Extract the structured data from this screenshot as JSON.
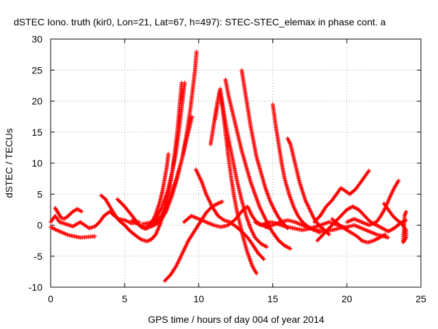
{
  "chart_data": {
    "type": "scatter",
    "title": "dSTEC Iono. truth (kir0, Lon=21, Lat=67, h=497): STEC-STEC_elemax in phase cont. a",
    "xlabel": "GPS time / hours of day 004 of year 2014",
    "ylabel": "dSTEC  / TECUs",
    "xlim": [
      0,
      25
    ],
    "ylim": [
      -10,
      30
    ],
    "xticks": [
      "0",
      "5",
      "10",
      "15",
      "20",
      "25"
    ],
    "yticks": [
      "-10",
      "-5",
      "0",
      "5",
      "10",
      "15",
      "20",
      "25",
      "30"
    ],
    "grid": true,
    "marker": "+",
    "colors": {
      "series": "#ff0000"
    },
    "series": [
      {
        "points": [
          [
            0,
            0.5
          ],
          [
            0.3,
            1.5
          ],
          [
            0.6,
            0.5
          ],
          [
            1.0,
            0.2
          ],
          [
            1.5,
            -0.2
          ],
          [
            2.0,
            0.5
          ],
          [
            2.3,
            0
          ],
          [
            2.6,
            -0.5
          ],
          [
            3.0,
            -0.2
          ],
          [
            3.3,
            0.5
          ],
          [
            3.6,
            1.5
          ],
          [
            4.0,
            2.2
          ],
          [
            4.3,
            1.5
          ],
          [
            4.6,
            1.0
          ],
          [
            5.0,
            0.8
          ],
          [
            5.5,
            0.3
          ],
          [
            6.0,
            0.5
          ]
        ]
      },
      {
        "points": [
          [
            0,
            -0.3
          ],
          [
            0.4,
            -0.8
          ],
          [
            0.8,
            -1.2
          ],
          [
            1.2,
            -1.6
          ],
          [
            1.6,
            -1.8
          ],
          [
            2.0,
            -2.0
          ],
          [
            2.5,
            -1.9
          ],
          [
            3.0,
            -1.8
          ]
        ]
      },
      {
        "points": [
          [
            0.3,
            2.8
          ],
          [
            0.5,
            2.0
          ],
          [
            0.7,
            1.2
          ],
          [
            0.9,
            1.0
          ],
          [
            1.2,
            1.5
          ],
          [
            1.5,
            2.2
          ],
          [
            1.8,
            2.6
          ],
          [
            2.1,
            2.2
          ]
        ]
      },
      {
        "points": [
          [
            3.4,
            4.8
          ],
          [
            3.7,
            4.2
          ],
          [
            4.0,
            3.0
          ],
          [
            4.3,
            1.8
          ],
          [
            4.6,
            0.8
          ],
          [
            5.0,
            0.0
          ],
          [
            5.3,
            -0.8
          ],
          [
            5.7,
            -1.6
          ],
          [
            6.1,
            -2.3
          ],
          [
            6.5,
            -2.6
          ],
          [
            6.8,
            -2.3
          ],
          [
            7.1,
            -1.5
          ],
          [
            7.4,
            0.2
          ],
          [
            7.7,
            2.5
          ],
          [
            8.0,
            5.5
          ],
          [
            8.2,
            8.5
          ],
          [
            8.4,
            12.0
          ],
          [
            8.55,
            15.0
          ],
          [
            8.7,
            19.0
          ],
          [
            8.85,
            23.0
          ]
        ]
      },
      {
        "points": [
          [
            4.5,
            4.2
          ],
          [
            5.0,
            3.0
          ],
          [
            5.4,
            1.8
          ],
          [
            5.8,
            0.6
          ],
          [
            6.1,
            -0.3
          ],
          [
            6.4,
            -0.6
          ],
          [
            6.8,
            0.2
          ],
          [
            7.1,
            1.8
          ],
          [
            7.35,
            3.6
          ],
          [
            7.55,
            5.5
          ],
          [
            7.7,
            7.5
          ],
          [
            7.85,
            9.5
          ],
          [
            7.95,
            11.5
          ]
        ]
      },
      {
        "points": [
          [
            5.5,
            0.8
          ],
          [
            6.0,
            0.0
          ],
          [
            6.5,
            -0.5
          ],
          [
            7.0,
            0.0
          ],
          [
            7.4,
            0.6
          ],
          [
            7.8,
            2.2
          ],
          [
            8.2,
            4.8
          ],
          [
            8.5,
            7.2
          ],
          [
            8.8,
            10.0
          ],
          [
            9.1,
            13.0
          ],
          [
            9.4,
            16.0
          ],
          [
            9.55,
            17.5
          ]
        ]
      },
      {
        "points": [
          [
            6.2,
            0.2
          ],
          [
            6.7,
            0.4
          ],
          [
            7.1,
            1.0
          ],
          [
            7.5,
            2.8
          ],
          [
            7.9,
            5.5
          ],
          [
            8.2,
            8.5
          ],
          [
            8.45,
            11.5
          ],
          [
            8.65,
            15.0
          ],
          [
            8.8,
            18.0
          ],
          [
            8.95,
            21.0
          ],
          [
            9.05,
            23.0
          ]
        ]
      },
      {
        "points": [
          [
            6.5,
            0.0
          ],
          [
            7.0,
            0.3
          ],
          [
            7.5,
            1.5
          ],
          [
            8.0,
            4.0
          ],
          [
            8.5,
            7.5
          ],
          [
            8.9,
            11.0
          ],
          [
            9.2,
            15.0
          ],
          [
            9.45,
            19.0
          ],
          [
            9.6,
            22.0
          ],
          [
            9.75,
            25.0
          ],
          [
            9.85,
            28.0
          ]
        ]
      },
      {
        "points": [
          [
            7.7,
            -9.0
          ],
          [
            8.1,
            -8.0
          ],
          [
            8.5,
            -6.5
          ],
          [
            8.9,
            -4.5
          ],
          [
            9.3,
            -2.5
          ],
          [
            9.7,
            -1.0
          ],
          [
            10.1,
            0.5
          ],
          [
            10.5,
            2.0
          ],
          [
            10.9,
            3.0
          ],
          [
            11.3,
            3.5
          ],
          [
            11.6,
            3.8
          ]
        ]
      },
      {
        "points": [
          [
            9.8,
            9.0
          ],
          [
            10.2,
            7.0
          ],
          [
            10.5,
            5.0
          ],
          [
            10.9,
            3.0
          ],
          [
            11.3,
            1.5
          ],
          [
            11.7,
            0.8
          ],
          [
            12.1,
            0.5
          ],
          [
            12.5,
            -0.2
          ],
          [
            12.9,
            -1.0
          ],
          [
            13.3,
            -2.0
          ],
          [
            13.6,
            -3.0
          ],
          [
            14.0,
            -4.5
          ],
          [
            14.4,
            -5.5
          ]
        ]
      },
      {
        "points": [
          [
            9.0,
            0.5
          ],
          [
            9.5,
            1.5
          ],
          [
            10.0,
            1.0
          ],
          [
            10.5,
            0.5
          ],
          [
            11.0,
            0.0
          ],
          [
            11.5,
            -0.3
          ],
          [
            12.0,
            0.0
          ],
          [
            12.5,
            1.0
          ],
          [
            13.0,
            2.5
          ],
          [
            13.3,
            3.0
          ],
          [
            13.6,
            1.5
          ],
          [
            13.9,
            0.5
          ],
          [
            14.3,
            0.0
          ],
          [
            14.8,
            -0.5
          ]
        ]
      },
      {
        "points": [
          [
            10.8,
            13.0
          ],
          [
            11.0,
            16.0
          ],
          [
            11.2,
            19.0
          ],
          [
            11.4,
            21.5
          ],
          [
            11.6,
            19.0
          ],
          [
            11.8,
            15.0
          ],
          [
            12.0,
            11.0
          ],
          [
            12.2,
            7.5
          ],
          [
            12.4,
            4.5
          ],
          [
            12.6,
            2.0
          ],
          [
            12.8,
            0.0
          ],
          [
            13.0,
            -2.0
          ],
          [
            13.3,
            -4.5
          ],
          [
            13.6,
            -6.5
          ],
          [
            13.9,
            -7.8
          ]
        ]
      },
      {
        "points": [
          [
            11.1,
            17.0
          ],
          [
            11.3,
            20.0
          ],
          [
            11.45,
            22.0
          ],
          [
            11.7,
            18.0
          ],
          [
            12.0,
            14.0
          ],
          [
            12.3,
            10.5
          ],
          [
            12.6,
            7.0
          ],
          [
            12.9,
            4.0
          ],
          [
            13.2,
            1.5
          ],
          [
            13.5,
            -0.5
          ],
          [
            13.8,
            -2.0
          ],
          [
            14.2,
            -3.0
          ],
          [
            14.6,
            -3.5
          ]
        ]
      },
      {
        "points": [
          [
            11.8,
            23.5
          ],
          [
            12.0,
            21.0
          ],
          [
            12.3,
            18.0
          ],
          [
            12.6,
            15.0
          ],
          [
            12.9,
            12.0
          ],
          [
            13.2,
            9.5
          ],
          [
            13.5,
            7.0
          ],
          [
            13.8,
            5.0
          ],
          [
            14.1,
            3.0
          ],
          [
            14.4,
            1.5
          ],
          [
            14.7,
            0.0
          ],
          [
            15.0,
            -1.2
          ],
          [
            15.4,
            -2.5
          ],
          [
            15.8,
            -3.3
          ],
          [
            16.2,
            -3.8
          ]
        ]
      },
      {
        "points": [
          [
            12.9,
            25.0
          ],
          [
            13.1,
            22.0
          ],
          [
            13.3,
            19.0
          ],
          [
            13.5,
            16.0
          ],
          [
            13.7,
            13.5
          ],
          [
            13.9,
            11.0
          ],
          [
            14.2,
            8.5
          ],
          [
            14.5,
            6.0
          ],
          [
            14.8,
            4.0
          ],
          [
            15.1,
            2.5
          ],
          [
            15.4,
            1.2
          ],
          [
            15.7,
            0.3
          ],
          [
            16.0,
            -0.5
          ]
        ]
      },
      {
        "points": [
          [
            15.0,
            19.5
          ],
          [
            15.2,
            16.0
          ],
          [
            15.4,
            13.0
          ],
          [
            15.6,
            10.0
          ],
          [
            15.8,
            7.5
          ],
          [
            16.1,
            5.0
          ],
          [
            16.4,
            3.0
          ],
          [
            16.7,
            1.5
          ],
          [
            17.0,
            0.5
          ],
          [
            17.4,
            -0.3
          ],
          [
            17.8,
            -0.8
          ],
          [
            18.2,
            -1.2
          ]
        ]
      },
      {
        "points": [
          [
            16.0,
            14.0
          ],
          [
            16.2,
            13.0
          ],
          [
            16.4,
            11.0
          ],
          [
            16.6,
            9.0
          ],
          [
            16.8,
            7.0
          ],
          [
            17.0,
            5.5
          ],
          [
            17.2,
            4.0
          ],
          [
            17.5,
            2.5
          ],
          [
            17.8,
            1.0
          ],
          [
            18.1,
            0.0
          ],
          [
            18.5,
            -0.8
          ],
          [
            18.8,
            -1.5
          ]
        ]
      },
      {
        "points": [
          [
            14.5,
            -0.3
          ],
          [
            15.0,
            0.0
          ],
          [
            15.5,
            0.5
          ],
          [
            16.0,
            0.8
          ],
          [
            16.5,
            0.5
          ],
          [
            17.0,
            0.0
          ],
          [
            17.5,
            -0.5
          ],
          [
            18.0,
            -0.8
          ],
          [
            18.5,
            -1.0
          ],
          [
            19.0,
            -0.8
          ],
          [
            19.5,
            -0.5
          ],
          [
            20.0,
            -0.3
          ],
          [
            20.5,
            0.0
          ],
          [
            21.0,
            -0.5
          ],
          [
            21.5,
            -1.0
          ],
          [
            22.0,
            -1.5
          ],
          [
            22.5,
            -1.8
          ],
          [
            22.8,
            -2.0
          ]
        ]
      },
      {
        "points": [
          [
            17.8,
            0.5
          ],
          [
            18.2,
            1.5
          ],
          [
            18.6,
            3.0
          ],
          [
            19.0,
            4.0
          ],
          [
            19.3,
            5.0
          ],
          [
            19.6,
            6.0
          ],
          [
            19.9,
            5.5
          ],
          [
            20.2,
            5.0
          ],
          [
            20.6,
            5.8
          ],
          [
            20.9,
            6.8
          ],
          [
            21.2,
            7.8
          ],
          [
            21.5,
            8.8
          ]
        ]
      },
      {
        "points": [
          [
            18.0,
            -2.5
          ],
          [
            18.4,
            -1.5
          ],
          [
            18.8,
            -0.5
          ],
          [
            19.2,
            0.5
          ],
          [
            19.6,
            1.5
          ],
          [
            20.0,
            2.5
          ],
          [
            20.4,
            3.0
          ],
          [
            20.8,
            2.5
          ],
          [
            21.2,
            1.5
          ],
          [
            21.6,
            0.5
          ],
          [
            22.0,
            0.0
          ],
          [
            22.4,
            -0.5
          ],
          [
            22.8,
            -1.0
          ],
          [
            23.2,
            -0.5
          ],
          [
            23.6,
            0.3
          ],
          [
            24.0,
            0.8
          ]
        ]
      },
      {
        "points": [
          [
            19.0,
            1.0
          ],
          [
            19.5,
            0.0
          ],
          [
            20.0,
            -0.8
          ],
          [
            20.5,
            -1.5
          ],
          [
            20.8,
            -2.0
          ],
          [
            21.0,
            -2.5
          ],
          [
            21.4,
            -2.8
          ],
          [
            21.8,
            -2.5
          ],
          [
            22.2,
            -2.0
          ],
          [
            22.6,
            -1.5
          ]
        ]
      },
      {
        "points": [
          [
            20.0,
            0.5
          ],
          [
            20.5,
            1.0
          ],
          [
            21.0,
            0.5
          ],
          [
            21.5,
            0.0
          ],
          [
            22.0,
            0.5
          ],
          [
            22.3,
            1.5
          ],
          [
            22.6,
            2.8
          ],
          [
            22.9,
            4.5
          ],
          [
            23.2,
            6.0
          ],
          [
            23.5,
            7.2
          ]
        ]
      },
      {
        "points": [
          [
            22.5,
            3.5
          ],
          [
            22.8,
            2.5
          ],
          [
            23.1,
            1.5
          ],
          [
            23.4,
            0.8
          ],
          [
            23.7,
            0.3
          ],
          [
            24.0,
            -0.8
          ],
          [
            24.0,
            -2.0
          ],
          [
            23.8,
            -2.8
          ],
          [
            23.9,
            1.5
          ],
          [
            24.0,
            2.2
          ]
        ]
      },
      {
        "points": [
          [
            13.8,
            0.5
          ],
          [
            14.2,
            0.0
          ],
          [
            14.8,
            0.5
          ],
          [
            15.2,
            0.3
          ],
          [
            15.8,
            -0.2
          ],
          [
            16.4,
            -0.5
          ],
          [
            17.0,
            -0.8
          ],
          [
            17.6,
            -0.5
          ],
          [
            18.2,
            0.0
          ],
          [
            18.8,
            0.5
          ],
          [
            19.4,
            0.0
          ],
          [
            20.0,
            -0.5
          ]
        ]
      }
    ]
  }
}
